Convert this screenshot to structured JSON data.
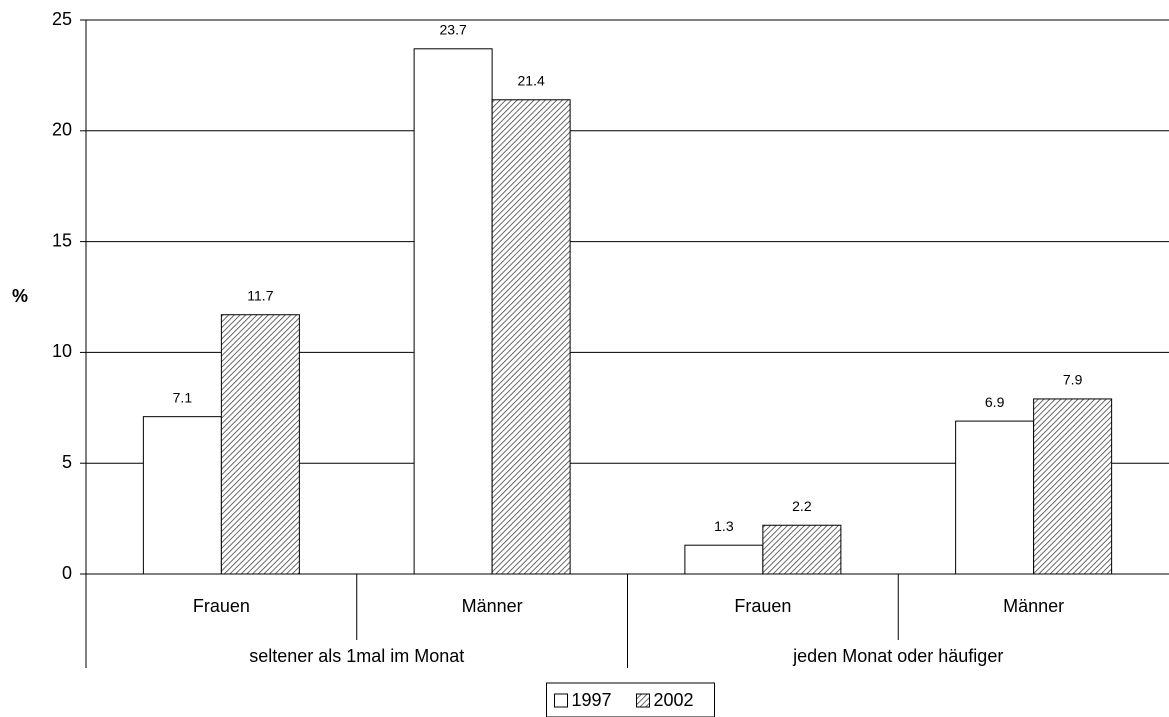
{
  "chart_data": {
    "type": "bar",
    "y_label": "%",
    "categories": [
      "Frauen",
      "Männer",
      "Frauen",
      "Männer"
    ],
    "groups": [
      "seltener als 1mal im Monat",
      "jeden Monat oder häufiger"
    ],
    "series": [
      {
        "name": "1997",
        "color": "#ffffff",
        "hatch": false,
        "values": [
          7.1,
          23.7,
          1.3,
          6.9
        ]
      },
      {
        "name": "2002",
        "color": "#ffffff",
        "hatch": true,
        "values": [
          11.7,
          21.4,
          2.2,
          7.9
        ]
      }
    ],
    "ylim": [
      0,
      25
    ],
    "yticks": [
      0,
      5,
      10,
      15,
      20,
      25
    ],
    "grid": true,
    "legend": "bottom"
  }
}
